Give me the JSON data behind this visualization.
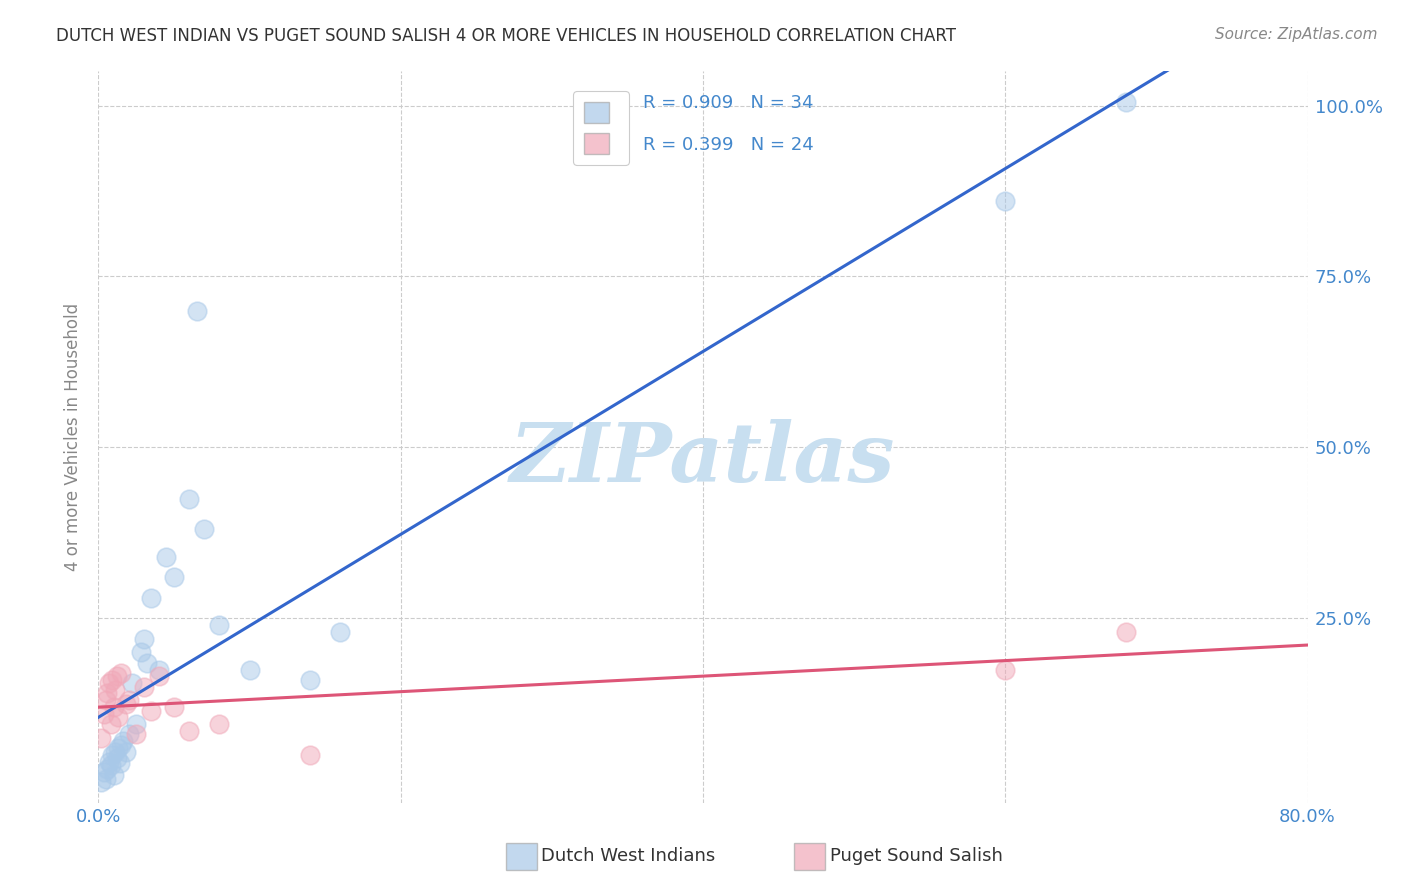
{
  "title": "DUTCH WEST INDIAN VS PUGET SOUND SALISH 4 OR MORE VEHICLES IN HOUSEHOLD CORRELATION CHART",
  "source": "Source: ZipAtlas.com",
  "ylabel": "4 or more Vehicles in Household",
  "xlim": [
    0.0,
    0.8
  ],
  "ylim": [
    -0.02,
    1.05
  ],
  "xticks": [
    0.0,
    0.2,
    0.4,
    0.6,
    0.8
  ],
  "xtick_labels": [
    "0.0%",
    "",
    "",
    "",
    "80.0%"
  ],
  "ytick_labels": [
    "25.0%",
    "50.0%",
    "75.0%",
    "100.0%"
  ],
  "yticks": [
    0.25,
    0.5,
    0.75,
    1.0
  ],
  "blue_scatter_x": [
    0.002,
    0.004,
    0.005,
    0.006,
    0.007,
    0.008,
    0.009,
    0.01,
    0.011,
    0.012,
    0.013,
    0.014,
    0.015,
    0.016,
    0.018,
    0.02,
    0.022,
    0.025,
    0.028,
    0.03,
    0.032,
    0.035,
    0.04,
    0.045,
    0.05,
    0.06,
    0.065,
    0.07,
    0.08,
    0.1,
    0.14,
    0.16,
    0.6,
    0.68
  ],
  "blue_scatter_y": [
    0.01,
    0.025,
    0.015,
    0.03,
    0.04,
    0.035,
    0.05,
    0.02,
    0.055,
    0.045,
    0.06,
    0.038,
    0.065,
    0.07,
    0.055,
    0.08,
    0.155,
    0.095,
    0.2,
    0.22,
    0.185,
    0.28,
    0.175,
    0.34,
    0.31,
    0.425,
    0.7,
    0.38,
    0.24,
    0.175,
    0.16,
    0.23,
    0.86,
    1.005
  ],
  "pink_scatter_x": [
    0.002,
    0.004,
    0.005,
    0.006,
    0.007,
    0.008,
    0.009,
    0.01,
    0.011,
    0.012,
    0.013,
    0.015,
    0.018,
    0.02,
    0.025,
    0.03,
    0.035,
    0.04,
    0.05,
    0.06,
    0.08,
    0.14,
    0.6,
    0.68
  ],
  "pink_scatter_y": [
    0.075,
    0.11,
    0.13,
    0.14,
    0.155,
    0.095,
    0.16,
    0.12,
    0.145,
    0.165,
    0.105,
    0.17,
    0.125,
    0.13,
    0.08,
    0.15,
    0.115,
    0.165,
    0.12,
    0.085,
    0.095,
    0.05,
    0.175,
    0.23
  ],
  "blue_R": 0.909,
  "blue_N": 34,
  "pink_R": 0.399,
  "pink_N": 24,
  "blue_scatter_color": "#a8c8e8",
  "pink_scatter_color": "#f0a8b8",
  "blue_line_color": "#3366cc",
  "pink_line_color": "#dd5577",
  "watermark_text": "ZIPatlas",
  "watermark_color": "#c8dff0",
  "legend_labels": [
    "Dutch West Indians",
    "Puget Sound Salish"
  ],
  "background_color": "#ffffff",
  "grid_color": "#cccccc",
  "tick_color": "#4488cc",
  "ylabel_color": "#888888",
  "title_color": "#333333",
  "source_color": "#888888"
}
